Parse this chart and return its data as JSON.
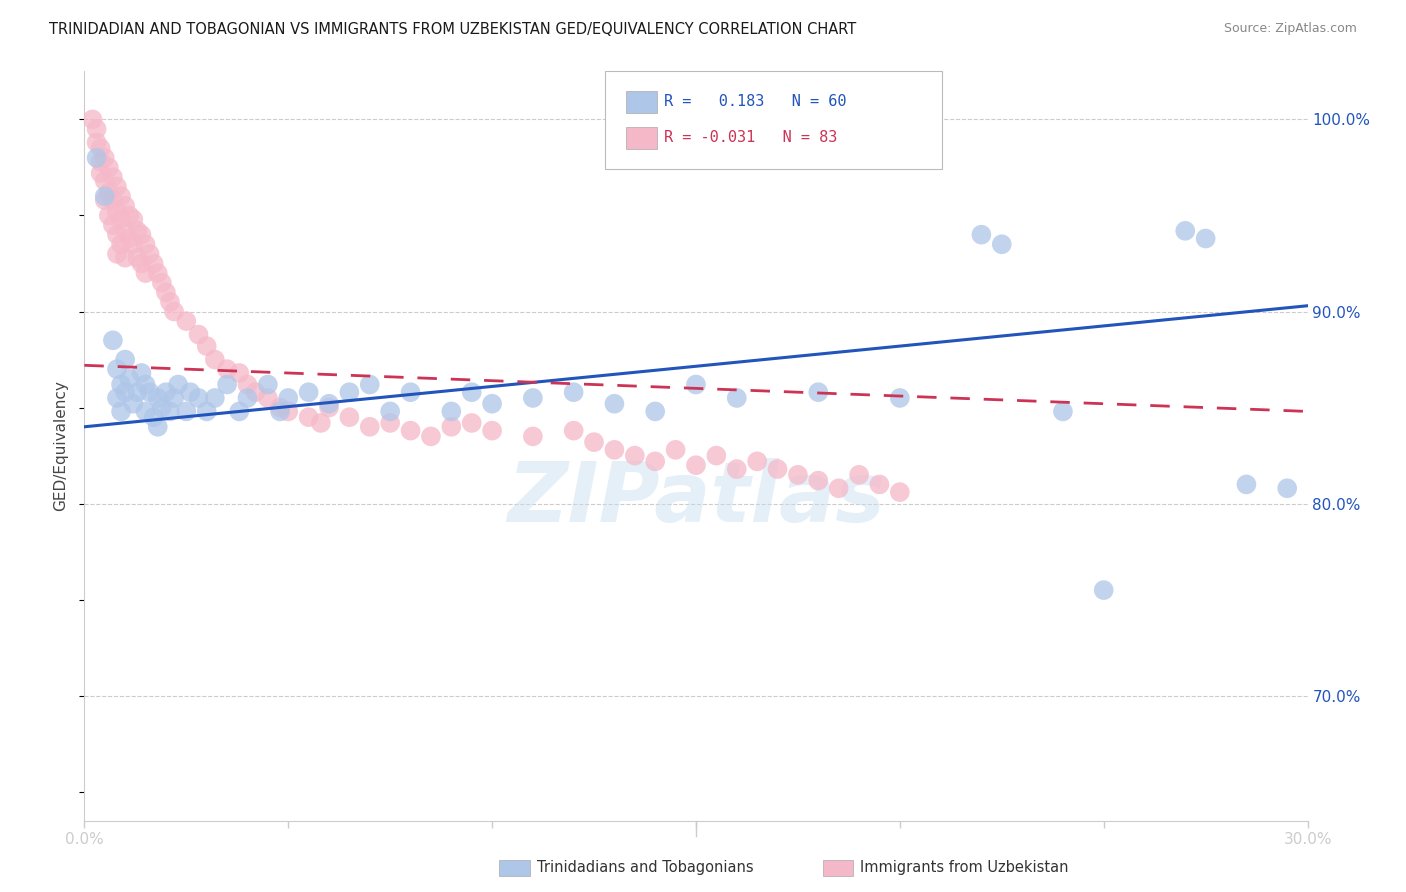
{
  "title": "TRINIDADIAN AND TOBAGONIAN VS IMMIGRANTS FROM UZBEKISTAN GED/EQUIVALENCY CORRELATION CHART",
  "source": "Source: ZipAtlas.com",
  "ylabel": "GED/Equivalency",
  "yticks": [
    "70.0%",
    "80.0%",
    "90.0%",
    "100.0%"
  ],
  "ytick_vals": [
    0.7,
    0.8,
    0.9,
    1.0
  ],
  "xlim": [
    0.0,
    0.3
  ],
  "ylim": [
    0.635,
    1.025
  ],
  "blue_color": "#aec6e8",
  "pink_color": "#f5b8c8",
  "blue_line_color": "#2255bb",
  "pink_line_color": "#cc3355",
  "grid_color": "#cccccc",
  "blue_line_y0": 0.84,
  "blue_line_y1": 0.903,
  "pink_line_y0": 0.872,
  "pink_line_y1": 0.848,
  "blue_scatter": [
    [
      0.003,
      0.98
    ],
    [
      0.005,
      0.96
    ],
    [
      0.007,
      0.885
    ],
    [
      0.008,
      0.87
    ],
    [
      0.008,
      0.855
    ],
    [
      0.009,
      0.862
    ],
    [
      0.009,
      0.848
    ],
    [
      0.01,
      0.875
    ],
    [
      0.01,
      0.858
    ],
    [
      0.011,
      0.865
    ],
    [
      0.012,
      0.852
    ],
    [
      0.013,
      0.858
    ],
    [
      0.014,
      0.868
    ],
    [
      0.015,
      0.862
    ],
    [
      0.015,
      0.848
    ],
    [
      0.016,
      0.858
    ],
    [
      0.017,
      0.845
    ],
    [
      0.018,
      0.855
    ],
    [
      0.018,
      0.84
    ],
    [
      0.019,
      0.85
    ],
    [
      0.02,
      0.858
    ],
    [
      0.021,
      0.848
    ],
    [
      0.022,
      0.855
    ],
    [
      0.023,
      0.862
    ],
    [
      0.025,
      0.848
    ],
    [
      0.026,
      0.858
    ],
    [
      0.028,
      0.855
    ],
    [
      0.03,
      0.848
    ],
    [
      0.032,
      0.855
    ],
    [
      0.035,
      0.862
    ],
    [
      0.038,
      0.848
    ],
    [
      0.04,
      0.855
    ],
    [
      0.045,
      0.862
    ],
    [
      0.048,
      0.848
    ],
    [
      0.05,
      0.855
    ],
    [
      0.055,
      0.858
    ],
    [
      0.06,
      0.852
    ],
    [
      0.065,
      0.858
    ],
    [
      0.07,
      0.862
    ],
    [
      0.075,
      0.848
    ],
    [
      0.08,
      0.858
    ],
    [
      0.09,
      0.848
    ],
    [
      0.095,
      0.858
    ],
    [
      0.1,
      0.852
    ],
    [
      0.11,
      0.855
    ],
    [
      0.12,
      0.858
    ],
    [
      0.13,
      0.852
    ],
    [
      0.14,
      0.848
    ],
    [
      0.15,
      0.862
    ],
    [
      0.16,
      0.855
    ],
    [
      0.18,
      0.858
    ],
    [
      0.2,
      0.855
    ],
    [
      0.22,
      0.94
    ],
    [
      0.225,
      0.935
    ],
    [
      0.24,
      0.848
    ],
    [
      0.25,
      0.755
    ],
    [
      0.27,
      0.942
    ],
    [
      0.275,
      0.938
    ],
    [
      0.285,
      0.81
    ],
    [
      0.295,
      0.808
    ]
  ],
  "pink_scatter": [
    [
      0.002,
      1.0
    ],
    [
      0.003,
      0.995
    ],
    [
      0.003,
      0.988
    ],
    [
      0.004,
      0.985
    ],
    [
      0.004,
      0.978
    ],
    [
      0.004,
      0.972
    ],
    [
      0.005,
      0.98
    ],
    [
      0.005,
      0.968
    ],
    [
      0.005,
      0.958
    ],
    [
      0.006,
      0.975
    ],
    [
      0.006,
      0.962
    ],
    [
      0.006,
      0.95
    ],
    [
      0.007,
      0.97
    ],
    [
      0.007,
      0.958
    ],
    [
      0.007,
      0.945
    ],
    [
      0.008,
      0.965
    ],
    [
      0.008,
      0.952
    ],
    [
      0.008,
      0.94
    ],
    [
      0.008,
      0.93
    ],
    [
      0.009,
      0.96
    ],
    [
      0.009,
      0.948
    ],
    [
      0.009,
      0.935
    ],
    [
      0.01,
      0.955
    ],
    [
      0.01,
      0.942
    ],
    [
      0.01,
      0.928
    ],
    [
      0.011,
      0.95
    ],
    [
      0.011,
      0.938
    ],
    [
      0.012,
      0.948
    ],
    [
      0.012,
      0.935
    ],
    [
      0.013,
      0.942
    ],
    [
      0.013,
      0.928
    ],
    [
      0.014,
      0.94
    ],
    [
      0.014,
      0.925
    ],
    [
      0.015,
      0.935
    ],
    [
      0.015,
      0.92
    ],
    [
      0.016,
      0.93
    ],
    [
      0.017,
      0.925
    ],
    [
      0.018,
      0.92
    ],
    [
      0.019,
      0.915
    ],
    [
      0.02,
      0.91
    ],
    [
      0.021,
      0.905
    ],
    [
      0.022,
      0.9
    ],
    [
      0.025,
      0.895
    ],
    [
      0.028,
      0.888
    ],
    [
      0.03,
      0.882
    ],
    [
      0.032,
      0.875
    ],
    [
      0.035,
      0.87
    ],
    [
      0.038,
      0.868
    ],
    [
      0.04,
      0.862
    ],
    [
      0.042,
      0.858
    ],
    [
      0.045,
      0.855
    ],
    [
      0.048,
      0.85
    ],
    [
      0.05,
      0.848
    ],
    [
      0.055,
      0.845
    ],
    [
      0.058,
      0.842
    ],
    [
      0.06,
      0.85
    ],
    [
      0.065,
      0.845
    ],
    [
      0.07,
      0.84
    ],
    [
      0.075,
      0.842
    ],
    [
      0.08,
      0.838
    ],
    [
      0.085,
      0.835
    ],
    [
      0.09,
      0.84
    ],
    [
      0.095,
      0.842
    ],
    [
      0.1,
      0.838
    ],
    [
      0.11,
      0.835
    ],
    [
      0.12,
      0.838
    ],
    [
      0.125,
      0.832
    ],
    [
      0.13,
      0.828
    ],
    [
      0.135,
      0.825
    ],
    [
      0.14,
      0.822
    ],
    [
      0.145,
      0.828
    ],
    [
      0.15,
      0.82
    ],
    [
      0.155,
      0.825
    ],
    [
      0.16,
      0.818
    ],
    [
      0.165,
      0.822
    ],
    [
      0.17,
      0.818
    ],
    [
      0.175,
      0.815
    ],
    [
      0.18,
      0.812
    ],
    [
      0.185,
      0.808
    ],
    [
      0.19,
      0.815
    ],
    [
      0.195,
      0.81
    ],
    [
      0.2,
      0.806
    ]
  ]
}
